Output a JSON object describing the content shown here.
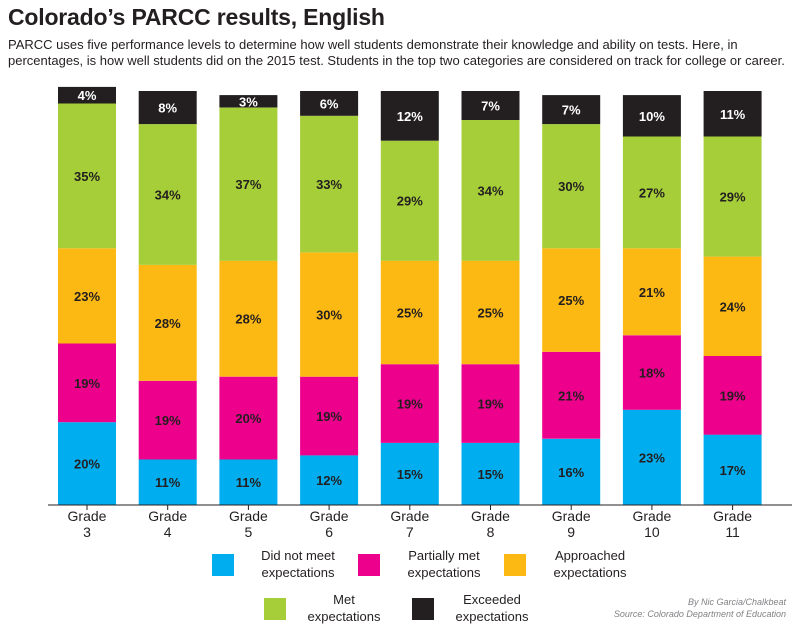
{
  "title": "Colorado’s PARCC results, English",
  "subtitle": "PARCC uses five performance levels to determine how well students demonstrate their knowledge and ability on tests. Here, in percentages, is how well students did on the 2015 test. Students in the top two categories are considered on track for college or career.",
  "credit": {
    "byline": "By Nic Garcia/Chalkbeat",
    "source": "Source: Colorado Department of Education"
  },
  "chart_data": {
    "type": "bar",
    "stacked": true,
    "title": "Colorado’s PARCC results, English",
    "xlabel": "",
    "ylabel": "",
    "ylim": [
      0,
      100
    ],
    "grid": false,
    "legend_position": "bottom",
    "categories": [
      [
        "Grade",
        "3"
      ],
      [
        "Grade",
        "4"
      ],
      [
        "Grade",
        "5"
      ],
      [
        "Grade",
        "6"
      ],
      [
        "Grade",
        "7"
      ],
      [
        "Grade",
        "8"
      ],
      [
        "Grade",
        "9"
      ],
      [
        "Grade",
        "10"
      ],
      [
        "Grade",
        "11"
      ]
    ],
    "series": [
      {
        "name": "Did not meet expectations",
        "legend_lines": [
          "Did not meet",
          "expectations"
        ],
        "color": "#00aeef",
        "values": [
          20,
          11,
          11,
          12,
          15,
          15,
          16,
          23,
          17
        ]
      },
      {
        "name": "Partially met expectations",
        "legend_lines": [
          "Partially met",
          "expectations"
        ],
        "color": "#ec008c",
        "values": [
          19,
          19,
          20,
          19,
          19,
          19,
          21,
          18,
          19
        ]
      },
      {
        "name": "Approached expectations",
        "legend_lines": [
          "Approached",
          "expectations"
        ],
        "color": "#fdb913",
        "values": [
          23,
          28,
          28,
          30,
          25,
          25,
          25,
          21,
          24
        ]
      },
      {
        "name": "Met expectations",
        "legend_lines": [
          "Met",
          "expectations"
        ],
        "color": "#a6ce39",
        "values": [
          35,
          34,
          37,
          33,
          29,
          34,
          30,
          27,
          29
        ]
      },
      {
        "name": "Exceeded expectations",
        "legend_lines": [
          "Exceeded",
          "expectations"
        ],
        "color": "#231f20",
        "values": [
          4,
          8,
          3,
          6,
          12,
          7,
          7,
          10,
          11
        ]
      }
    ],
    "value_suffix": "%"
  }
}
